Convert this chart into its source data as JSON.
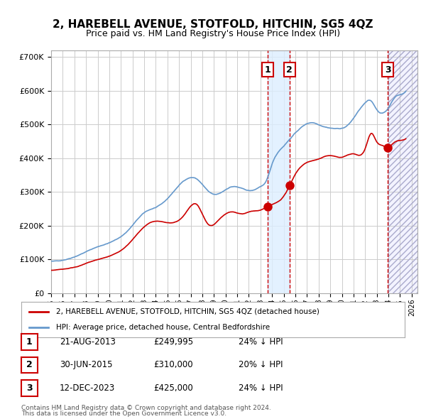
{
  "title": "2, HAREBELL AVENUE, STOTFOLD, HITCHIN, SG5 4QZ",
  "subtitle": "Price paid vs. HM Land Registry's House Price Index (HPI)",
  "legend_line1": "2, HAREBELL AVENUE, STOTFOLD, HITCHIN, SG5 4QZ (detached house)",
  "legend_line2": "HPI: Average price, detached house, Central Bedfordshire",
  "transactions": [
    {
      "label": "1",
      "date": "21-AUG-2013",
      "price": 249995,
      "pct": "24%",
      "dir": "↓",
      "x_year": 2013.64
    },
    {
      "label": "2",
      "date": "30-JUN-2015",
      "price": 310000,
      "pct": "20%",
      "dir": "↓",
      "x_year": 2015.49
    },
    {
      "label": "3",
      "date": "12-DEC-2023",
      "price": 425000,
      "pct": "24%",
      "dir": "↓",
      "x_year": 2023.95
    }
  ],
  "footer1": "Contains HM Land Registry data © Crown copyright and database right 2024.",
  "footer2": "This data is licensed under the Open Government Licence v3.0.",
  "red_color": "#cc0000",
  "blue_color": "#6699cc",
  "shade_color": "#ddeeff",
  "ylim": [
    0,
    720000
  ],
  "xlim_start": 1995.0,
  "xlim_end": 2026.5,
  "background_color": "#ffffff",
  "grid_color": "#cccccc"
}
